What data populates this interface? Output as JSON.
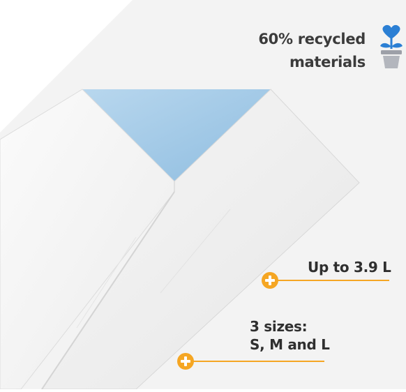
{
  "colors": {
    "background_panel": "#f3f3f3",
    "pad_blue": "#a9cde6",
    "pad_white": "#f5f5f5",
    "accent_orange": "#f5a623",
    "icon_blue": "#2b7fd4",
    "pot_gray": "#a7aab2"
  },
  "recycled_badge": {
    "line1": "60% recycled",
    "line2": "materials",
    "icon": "heart-flower-pot-icon"
  },
  "callouts": [
    {
      "text_lines": [
        "Up to 3.9 L"
      ],
      "icon": "plus-icon"
    },
    {
      "text_lines": [
        "3 sizes:",
        "S, M and L"
      ],
      "icon": "plus-icon"
    }
  ]
}
